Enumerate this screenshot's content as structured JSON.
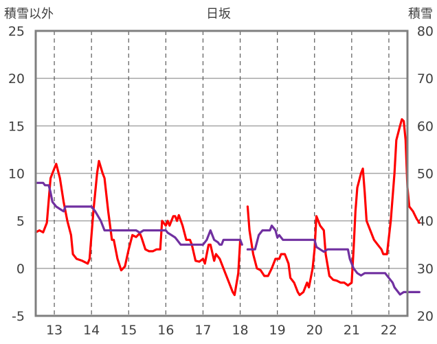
{
  "chart_data": {
    "type": "line",
    "title": "日坂",
    "ylabel_left": "積雪以外",
    "ylabel_right": "積雪",
    "ylim_left": [
      -5,
      25
    ],
    "ylim_right": [
      20,
      80
    ],
    "yticks_left": [
      "25",
      "20",
      "15",
      "10",
      "5",
      "0",
      "-5"
    ],
    "yticks_right": [
      "80",
      "70",
      "60",
      "50",
      "40",
      "30",
      "20"
    ],
    "xlim": [
      12.5,
      22.5
    ],
    "xticks": [
      "13",
      "14",
      "15",
      "16",
      "17",
      "18",
      "19",
      "20",
      "21",
      "22"
    ],
    "grid": "dashed vertical at day marks",
    "series": [
      {
        "axis": "left",
        "color": "#ff0000",
        "segments": [
          [
            [
              12.5,
              3.8
            ],
            [
              12.6,
              4.0
            ],
            [
              12.7,
              3.8
            ],
            [
              12.8,
              4.8
            ],
            [
              12.9,
              9.5
            ],
            [
              13.0,
              10.5
            ],
            [
              13.05,
              11.0
            ],
            [
              13.15,
              9.5
            ],
            [
              13.25,
              7.0
            ],
            [
              13.35,
              5.0
            ],
            [
              13.45,
              3.5
            ],
            [
              13.5,
              1.5
            ],
            [
              13.6,
              1.0
            ],
            [
              13.75,
              0.8
            ],
            [
              13.9,
              0.5
            ],
            [
              13.95,
              1.0
            ],
            [
              14.05,
              6.0
            ],
            [
              14.15,
              10.0
            ],
            [
              14.2,
              11.3
            ],
            [
              14.3,
              10.0
            ],
            [
              14.35,
              9.5
            ],
            [
              14.45,
              6.0
            ],
            [
              14.55,
              3.0
            ],
            [
              14.6,
              3.0
            ],
            [
              14.7,
              1.0
            ],
            [
              14.8,
              -0.2
            ],
            [
              14.9,
              0.2
            ],
            [
              15.0,
              2.0
            ],
            [
              15.1,
              3.5
            ],
            [
              15.2,
              3.3
            ],
            [
              15.3,
              3.7
            ],
            [
              15.35,
              3.2
            ],
            [
              15.45,
              2.0
            ],
            [
              15.55,
              1.8
            ],
            [
              15.65,
              1.8
            ],
            [
              15.75,
              2.0
            ],
            [
              15.85,
              2.0
            ],
            [
              15.9,
              5.0
            ],
            [
              16.0,
              4.5
            ],
            [
              16.05,
              5.0
            ],
            [
              16.1,
              4.5
            ],
            [
              16.2,
              5.5
            ],
            [
              16.25,
              5.5
            ],
            [
              16.3,
              5.0
            ],
            [
              16.35,
              5.6
            ],
            [
              16.45,
              4.5
            ],
            [
              16.55,
              3.0
            ],
            [
              16.65,
              3.0
            ],
            [
              16.7,
              2.5
            ],
            [
              16.8,
              0.8
            ],
            [
              16.9,
              0.7
            ],
            [
              17.0,
              1.0
            ],
            [
              17.05,
              0.5
            ],
            [
              17.15,
              2.5
            ],
            [
              17.2,
              2.5
            ],
            [
              17.3,
              0.8
            ],
            [
              17.35,
              1.5
            ],
            [
              17.45,
              1.0
            ],
            [
              17.6,
              -0.5
            ],
            [
              17.7,
              -1.5
            ],
            [
              17.8,
              -2.5
            ],
            [
              17.85,
              -2.8
            ],
            [
              17.95,
              -0.5
            ],
            [
              18.0,
              3.0
            ]
          ],
          [
            [
              18.2,
              6.5
            ],
            [
              18.25,
              4.0
            ],
            [
              18.35,
              1.5
            ],
            [
              18.45,
              0.0
            ],
            [
              18.55,
              -0.2
            ],
            [
              18.65,
              -0.8
            ],
            [
              18.75,
              -0.8
            ],
            [
              18.85,
              0.0
            ],
            [
              18.95,
              1.0
            ],
            [
              19.05,
              1.0
            ],
            [
              19.1,
              1.5
            ],
            [
              19.2,
              1.5
            ],
            [
              19.3,
              0.5
            ],
            [
              19.35,
              -1.0
            ],
            [
              19.45,
              -1.5
            ],
            [
              19.55,
              -2.5
            ],
            [
              19.6,
              -2.8
            ],
            [
              19.7,
              -2.5
            ],
            [
              19.75,
              -2.0
            ],
            [
              19.8,
              -1.5
            ],
            [
              19.85,
              -2.0
            ],
            [
              19.95,
              0.0
            ],
            [
              20.0,
              2.0
            ],
            [
              20.05,
              5.5
            ],
            [
              20.15,
              4.5
            ],
            [
              20.25,
              4.0
            ],
            [
              20.3,
              1.5
            ],
            [
              20.4,
              -0.8
            ],
            [
              20.5,
              -1.2
            ],
            [
              20.6,
              -1.3
            ],
            [
              20.7,
              -1.5
            ],
            [
              20.8,
              -1.5
            ],
            [
              20.9,
              -1.8
            ],
            [
              21.0,
              -1.5
            ],
            [
              21.05,
              2.0
            ],
            [
              21.1,
              6.0
            ],
            [
              21.15,
              8.5
            ],
            [
              21.25,
              10.0
            ],
            [
              21.3,
              10.5
            ],
            [
              21.35,
              8.0
            ],
            [
              21.4,
              5.0
            ],
            [
              21.5,
              4.0
            ],
            [
              21.6,
              3.0
            ],
            [
              21.7,
              2.5
            ],
            [
              21.8,
              2.0
            ],
            [
              21.85,
              1.5
            ],
            [
              21.95,
              1.5
            ],
            [
              22.05,
              5.0
            ],
            [
              22.15,
              10.0
            ],
            [
              22.2,
              13.5
            ],
            [
              22.3,
              15.0
            ],
            [
              22.35,
              15.7
            ],
            [
              22.4,
              15.5
            ],
            [
              22.45,
              13.5
            ],
            [
              22.5,
              8.5
            ],
            [
              22.55,
              6.5
            ],
            [
              22.65,
              6.0
            ],
            [
              22.75,
              5.2
            ],
            [
              22.82,
              4.8
            ]
          ]
        ]
      },
      {
        "axis": "right",
        "color": "#7030a0",
        "segments": [
          [
            [
              12.5,
              48
            ],
            [
              12.7,
              48
            ],
            [
              12.75,
              47.5
            ],
            [
              12.85,
              47.5
            ],
            [
              12.9,
              46
            ],
            [
              12.95,
              44
            ],
            [
              13.05,
              43
            ],
            [
              13.15,
              42.5
            ],
            [
              13.25,
              42
            ],
            [
              13.3,
              43
            ],
            [
              14.0,
              43
            ],
            [
              14.1,
              42
            ],
            [
              14.25,
              40
            ],
            [
              14.35,
              38
            ],
            [
              15.2,
              38
            ],
            [
              15.3,
              37.5
            ],
            [
              15.4,
              38
            ],
            [
              16.0,
              38
            ],
            [
              16.05,
              37.5
            ],
            [
              16.15,
              37
            ],
            [
              16.25,
              36.5
            ],
            [
              16.3,
              36
            ],
            [
              16.4,
              35
            ],
            [
              17.0,
              35
            ],
            [
              17.1,
              36
            ],
            [
              17.2,
              38
            ],
            [
              17.3,
              36
            ],
            [
              17.4,
              35.5
            ],
            [
              17.45,
              35
            ],
            [
              17.5,
              35
            ],
            [
              17.55,
              36
            ],
            [
              18.0,
              36
            ],
            [
              18.05,
              35
            ]
          ],
          [
            [
              18.2,
              34
            ],
            [
              18.4,
              34
            ],
            [
              18.5,
              37
            ],
            [
              18.6,
              38
            ],
            [
              18.7,
              38
            ],
            [
              18.8,
              38
            ],
            [
              18.85,
              39
            ],
            [
              18.95,
              38
            ],
            [
              19.0,
              36.5
            ],
            [
              19.05,
              37
            ],
            [
              19.15,
              36
            ],
            [
              19.25,
              36
            ],
            [
              20.0,
              36
            ],
            [
              20.05,
              34.5
            ],
            [
              20.15,
              34
            ],
            [
              20.25,
              33.5
            ],
            [
              20.35,
              34
            ],
            [
              20.9,
              34
            ],
            [
              20.95,
              32
            ],
            [
              21.05,
              30
            ],
            [
              21.15,
              29
            ],
            [
              21.25,
              28.5
            ],
            [
              21.35,
              29
            ],
            [
              21.9,
              29
            ],
            [
              21.95,
              28.5
            ],
            [
              22.0,
              28
            ],
            [
              22.1,
              27
            ],
            [
              22.15,
              26
            ],
            [
              22.25,
              25
            ],
            [
              22.3,
              24.5
            ],
            [
              22.4,
              25
            ],
            [
              22.82,
              25
            ]
          ]
        ]
      }
    ]
  }
}
